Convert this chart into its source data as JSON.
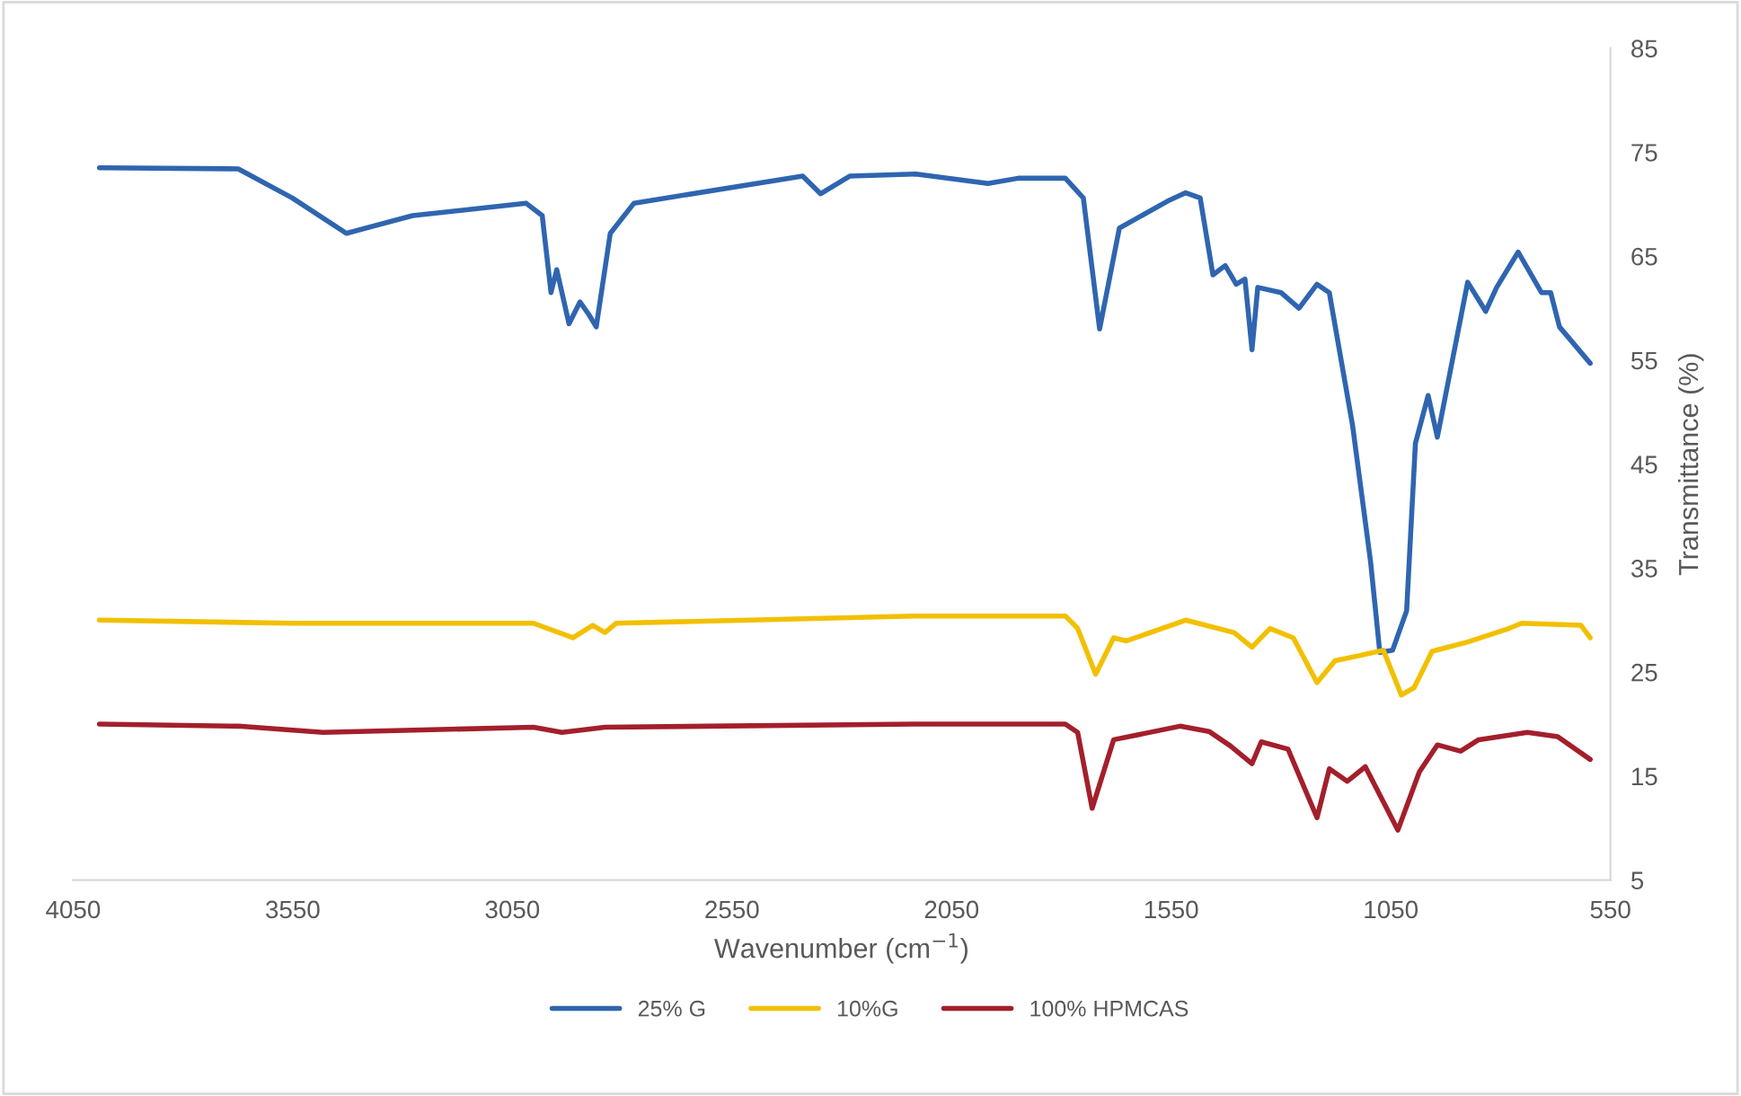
{
  "chart_data": {
    "type": "line",
    "xlabel": "Wavenumber (cm$^{−1}$)",
    "ylabel": "Transmittance (%)",
    "xlim": [
      4050,
      550
    ],
    "xticks": [
      4050,
      3550,
      3050,
      2550,
      2050,
      1550,
      1050,
      550
    ],
    "ylim": [
      5,
      85
    ],
    "yticks": [
      5,
      15,
      25,
      35,
      45,
      55,
      65,
      75,
      85
    ],
    "grid": false,
    "legend": "bottom",
    "marker": "none",
    "line_style": "solid",
    "series": [
      {
        "name": "25% G",
        "color": "#2f65b0",
        "x": [
          3990,
          3674,
          3551,
          3428,
          3277,
          3019,
          2982,
          2962,
          2949,
          2921,
          2896,
          2876,
          2859,
          2827,
          2773,
          2389,
          2348,
          2282,
          2131,
          1967,
          1898,
          1791,
          1750,
          1713,
          1668,
          1558,
          1517,
          1484,
          1455,
          1427,
          1402,
          1382,
          1366,
          1353,
          1300,
          1259,
          1218,
          1190,
          1137,
          1096,
          1075,
          1046,
          1014,
          994,
          965,
          944,
          875,
          834,
          809,
          760,
          707,
          686,
          666,
          596
        ],
        "values": [
          73.5,
          73.4,
          70.6,
          67.2,
          68.9,
          70.1,
          68.9,
          61.5,
          63.7,
          58.5,
          60.6,
          59.4,
          58.2,
          67.2,
          70.1,
          72.7,
          71.0,
          72.7,
          72.9,
          72.0,
          72.5,
          72.5,
          70.6,
          58.0,
          67.7,
          70.3,
          71.1,
          70.6,
          63.2,
          64.1,
          62.3,
          62.8,
          56.0,
          62.0,
          61.5,
          60.0,
          62.3,
          61.5,
          48.7,
          35.6,
          26.9,
          27.1,
          30.9,
          47.0,
          51.6,
          47.6,
          62.5,
          59.7,
          62.0,
          65.4,
          61.5,
          61.5,
          58.2,
          54.7
        ]
      },
      {
        "name": "10%G",
        "color": "#f2c000",
        "x": [
          3990,
          3551,
          3002,
          2912,
          2867,
          2839,
          2814,
          2131,
          1791,
          1763,
          1722,
          1681,
          1652,
          1517,
          1407,
          1366,
          1325,
          1272,
          1218,
          1177,
          1120,
          1067,
          1026,
          997,
          956,
          875,
          781,
          752,
          617,
          596
        ],
        "values": [
          30.0,
          29.7,
          29.7,
          28.3,
          29.5,
          28.8,
          29.7,
          30.4,
          30.4,
          29.2,
          24.8,
          28.3,
          28.0,
          30.0,
          28.8,
          27.4,
          29.2,
          28.3,
          24.0,
          26.1,
          26.6,
          27.1,
          22.8,
          23.5,
          27.0,
          27.9,
          29.2,
          29.7,
          29.5,
          28.3
        ]
      },
      {
        "name": "100% HPMCAS",
        "color": "#a31f2b",
        "x": [
          3990,
          3674,
          3481,
          3002,
          2937,
          2839,
          2131,
          1791,
          1763,
          1730,
          1681,
          1530,
          1464,
          1415,
          1366,
          1345,
          1284,
          1218,
          1190,
          1149,
          1108,
          1034,
          985,
          944,
          891,
          850,
          739,
          670,
          596
        ],
        "values": [
          20.0,
          19.8,
          19.2,
          19.7,
          19.2,
          19.7,
          20.0,
          20.0,
          19.2,
          11.9,
          18.5,
          19.8,
          19.3,
          17.9,
          16.2,
          18.3,
          17.6,
          11.0,
          15.7,
          14.5,
          15.9,
          9.8,
          15.4,
          18.0,
          17.4,
          18.5,
          19.2,
          18.8,
          16.6
        ]
      }
    ]
  }
}
